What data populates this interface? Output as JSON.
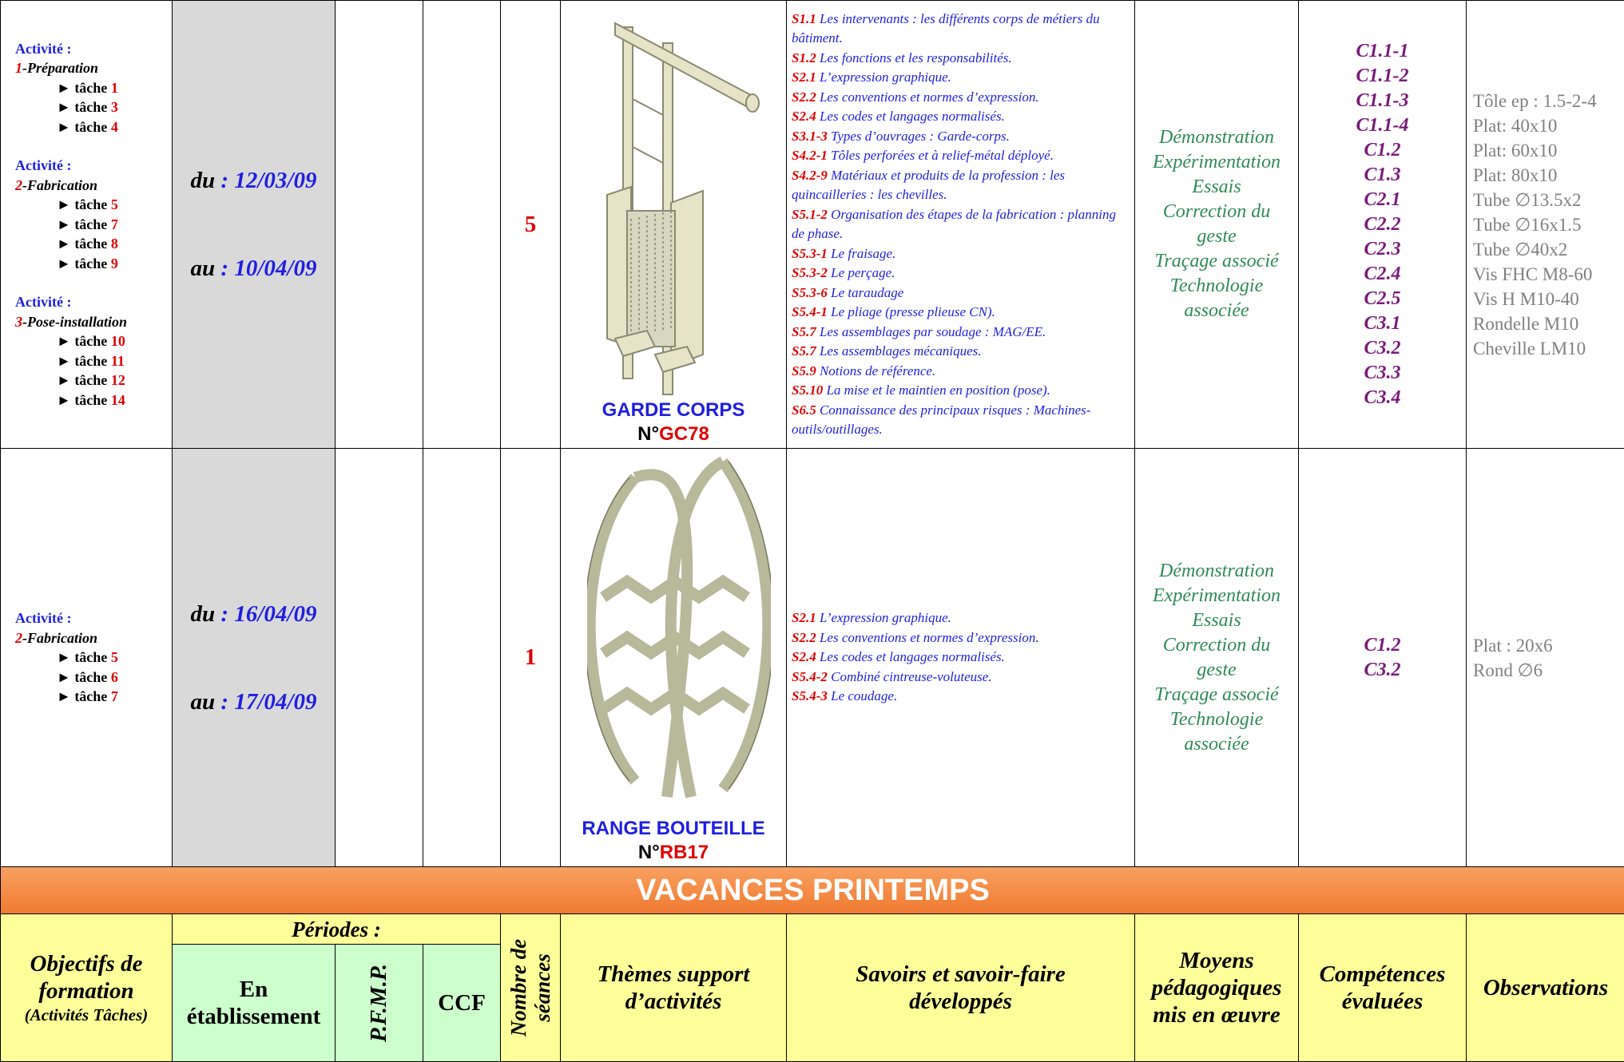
{
  "rows": [
    {
      "activities": [
        {
          "title": "Activité :",
          "num": "1",
          "name": "-Préparation",
          "tasks": [
            {
              "label": "► tâche",
              "num": "1"
            },
            {
              "label": "► tâche",
              "num": "3"
            },
            {
              "label": "► tâche",
              "num": "4"
            }
          ]
        },
        {
          "title": "Activité :",
          "num": "2",
          "name": "-Fabrication",
          "tasks": [
            {
              "label": "► tâche",
              "num": "5"
            },
            {
              "label": "► tâche",
              "num": "7"
            },
            {
              "label": "► tâche",
              "num": "8"
            },
            {
              "label": "► tâche",
              "num": "9"
            }
          ]
        },
        {
          "title": "Activité :",
          "num": "3",
          "name": "-Pose-installation",
          "tasks": [
            {
              "label": "► tâche",
              "num": "10"
            },
            {
              "label": "► tâche",
              "num": "11"
            },
            {
              "label": "► tâche",
              "num": "12"
            },
            {
              "label": "► tâche",
              "num": "14"
            }
          ]
        }
      ],
      "from": {
        "label": "du",
        "date": ": 12/03/09"
      },
      "to": {
        "label": "au",
        "date": ": 10/04/09"
      },
      "seances": "5",
      "theme": {
        "name": "GARDE CORPS",
        "prefix": "N°",
        "ref": "GC78"
      },
      "savoirs": [
        {
          "code": "S1.1",
          "text": "Les intervenants : les différents corps de métiers du bâtiment."
        },
        {
          "code": "S1.2",
          "text": "Les fonctions et les responsabilités."
        },
        {
          "code": "S2.1",
          "text": "L’expression graphique."
        },
        {
          "code": "S2.2",
          "text": "Les conventions et normes d’expression."
        },
        {
          "code": "S2.4",
          "text": "Les codes et langages normalisés."
        },
        {
          "code": "S3.1-3",
          "text": "Types d’ouvrages : Garde-corps."
        },
        {
          "code": "S4.2-1",
          "text": "Tôles perforées et à relief-métal déployé."
        },
        {
          "code": "S4.2-9",
          "text": "Matériaux et produits de la profession : les quincailleries : les chevilles."
        },
        {
          "code": "S5.1-2",
          "text": "Organisation des étapes de la fabrication : planning de phase."
        },
        {
          "code": "S5.3-1",
          "text": "Le fraisage."
        },
        {
          "code": "S5.3-2",
          "text": "Le perçage."
        },
        {
          "code": "S5.3-6",
          "text": "Le taraudage"
        },
        {
          "code": "S5.4-1",
          "text": "Le pliage (presse plieuse CN)."
        },
        {
          "code": "S5.7",
          "text": "Les assemblages par soudage : MAG/EE."
        },
        {
          "code": "S5.7",
          "text": "Les assemblages mécaniques."
        },
        {
          "code": "S5.9",
          "text": "Notions de référence."
        },
        {
          "code": "S5.10",
          "text": "La mise et le maintien en position (pose)."
        },
        {
          "code": "S6.5",
          "text": "Connaissance des principaux risques : Machines-outils/outillages."
        }
      ],
      "moyens": [
        "Démonstration",
        "Expérimentation",
        "Essais",
        "Correction du geste",
        "Traçage associé",
        "Technologie associée"
      ],
      "competences": [
        "C1.1-1",
        "C1.1-2",
        "C1.1-3",
        "C1.1-4",
        "C1.2",
        "C1.3",
        "C2.1",
        "C2.2",
        "C2.3",
        "C2.4",
        "C2.5",
        "C3.1",
        "C3.2",
        "C3.3",
        "C3.4"
      ],
      "observations": [
        "Tôle ep : 1.5-2-4",
        "Plat: 40x10",
        "Plat: 60x10",
        "Plat: 80x10",
        "Tube ∅13.5x2",
        "Tube ∅16x1.5",
        "Tube ∅40x2",
        "Vis FHC M8-60",
        "Vis H M10-40",
        "Rondelle M10",
        "Cheville LM10"
      ]
    },
    {
      "activities": [
        {
          "title": "Activité :",
          "num": "2",
          "name": "-Fabrication",
          "tasks": [
            {
              "label": "► tâche",
              "num": "5"
            },
            {
              "label": "► tâche",
              "num": "6"
            },
            {
              "label": "► tâche",
              "num": "7"
            }
          ]
        }
      ],
      "from": {
        "label": "du",
        "date": ": 16/04/09"
      },
      "to": {
        "label": "au",
        "date": ": 17/04/09"
      },
      "seances": "1",
      "theme": {
        "name": "RANGE BOUTEILLE",
        "prefix": "N°",
        "ref": "RB17"
      },
      "savoirs": [
        {
          "code": "S2.1",
          "text": "L’expression graphique."
        },
        {
          "code": "S2.2",
          "text": "Les conventions et normes d’expression."
        },
        {
          "code": "S2.4",
          "text": "Les codes et langages normalisés."
        },
        {
          "code": "S5.4-2",
          "text": "Combiné cintreuse-voluteuse."
        },
        {
          "code": "S5.4-3",
          "text": "Le coudage."
        }
      ],
      "moyens": [
        "Démonstration",
        "Expérimentation",
        "Essais",
        "Correction du geste",
        "Traçage associé",
        "Technologie associée"
      ],
      "competences": [
        "C1.2",
        "C3.2"
      ],
      "observations": [
        "Plat : 20x6",
        "Rond ∅6"
      ]
    }
  ],
  "banner": "VACANCES PRINTEMPS",
  "header": {
    "objectifs": "Objectifs de formation",
    "objectifs_note": "(Activités Tâches)",
    "periodes": "Périodes :",
    "etablissement": "En établissement",
    "pfmp": "P.F.M.P.",
    "ccf": "CCF",
    "seances": "Nombre de séances",
    "themes": "Thèmes support d’activités",
    "savoirs": "Savoirs et savoir-faire développés",
    "moyens": "Moyens pédagogiques mis en œuvre",
    "competences": "Compétences évaluées",
    "observations": "Observations"
  }
}
